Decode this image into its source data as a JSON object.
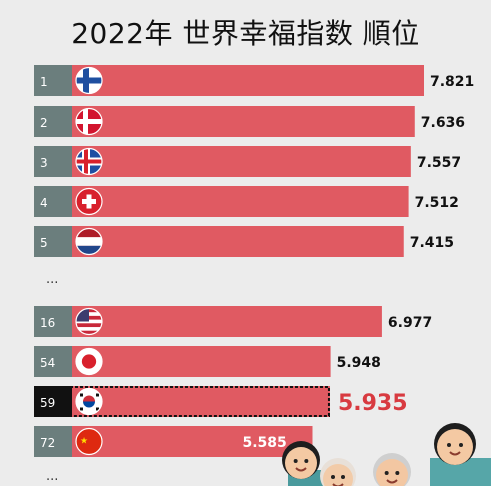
{
  "chart_data": {
    "type": "bar",
    "title": "2022年 世界幸福指数 順位",
    "orientation": "horizontal",
    "xlim": [
      0,
      8.2
    ],
    "categories": [
      "Finland",
      "Denmark",
      "Iceland",
      "Switzerland",
      "Netherlands",
      "United States",
      "Japan",
      "South Korea",
      "China"
    ],
    "ranks": [
      "1",
      "2",
      "3",
      "4",
      "5",
      "16",
      "54",
      "59",
      "72"
    ],
    "values": [
      7.821,
      7.636,
      7.557,
      7.512,
      7.415,
      6.977,
      5.948,
      5.935,
      5.585
    ],
    "value_labels": [
      "7.821",
      "7.636",
      "7.557",
      "7.512",
      "7.415",
      "6.977",
      "5.948",
      "5.935",
      "5.585"
    ],
    "highlighted_category": "South Korea",
    "gap_marker": "..."
  },
  "colors": {
    "bar": "#e05a62",
    "rank_box": "#6b7e7d",
    "highlight_value": "#d83a40",
    "highlight_box": "#111111"
  },
  "flag_icons": [
    "finland-flag-icon",
    "denmark-flag-icon",
    "iceland-flag-icon",
    "switzerland-flag-icon",
    "netherlands-flag-icon",
    "usa-flag-icon",
    "japan-flag-icon",
    "south-korea-flag-icon",
    "china-flag-icon"
  ]
}
